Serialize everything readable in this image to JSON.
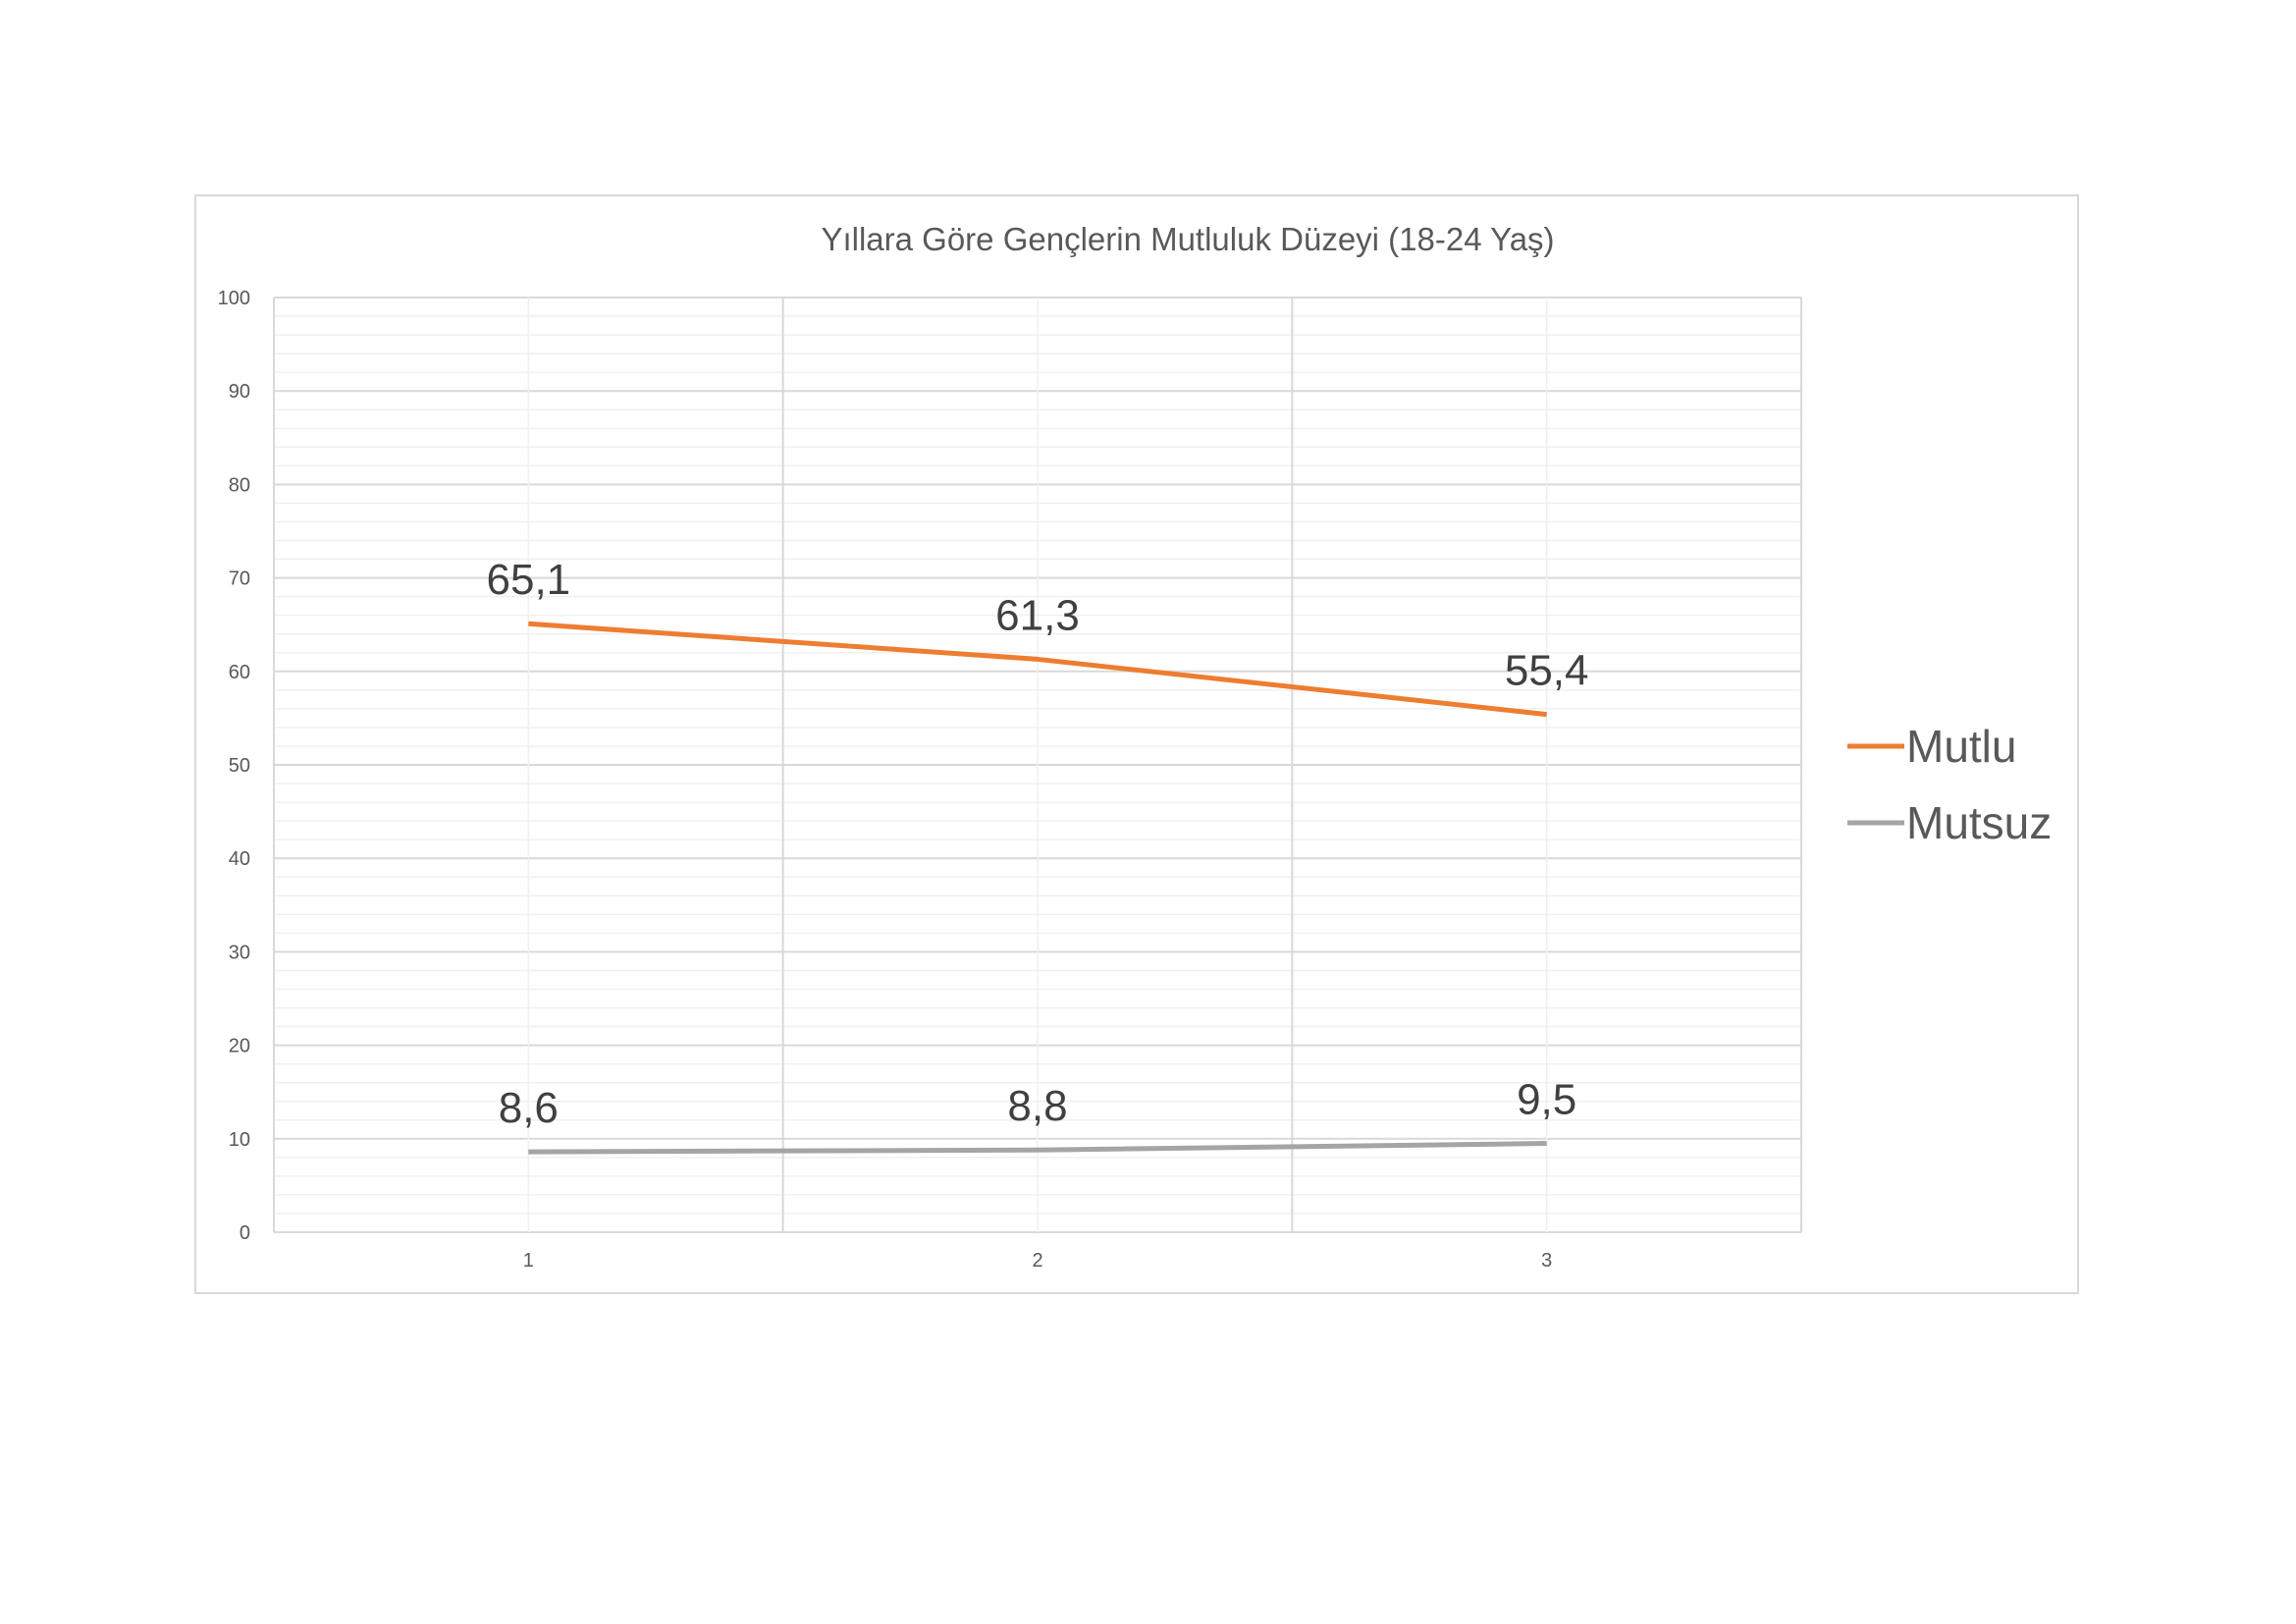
{
  "chart_data": {
    "type": "line",
    "title": "Yıllara Göre Gençlerin Mutluluk Düzeyi (18-24 Yaş)",
    "xlabel": "",
    "ylabel": "",
    "categories": [
      "1",
      "2",
      "3"
    ],
    "ylim": [
      0,
      100
    ],
    "yticks": [
      "0",
      "10",
      "20",
      "30",
      "40",
      "50",
      "60",
      "70",
      "80",
      "90",
      "100"
    ],
    "grid": true,
    "legend_position": "right",
    "series": [
      {
        "name": "Mutlu",
        "color": "#ed7d31",
        "values": [
          65.1,
          61.3,
          55.4
        ],
        "labels": [
          "65,1",
          "61,3",
          "55,4"
        ]
      },
      {
        "name": "Mutsuz",
        "color": "#a5a5a5",
        "values": [
          8.6,
          8.8,
          9.5
        ],
        "labels": [
          "8,6",
          "8,8",
          "9,5"
        ]
      }
    ]
  }
}
